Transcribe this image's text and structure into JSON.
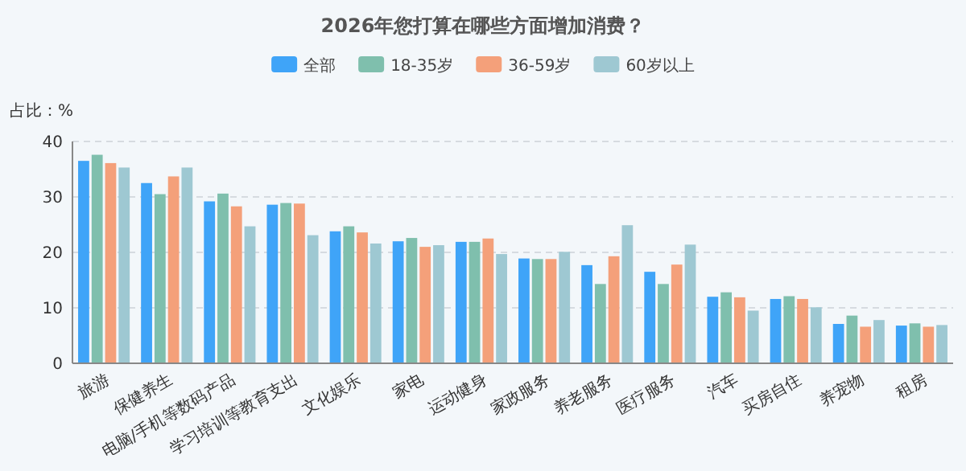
{
  "chart_data": {
    "type": "bar",
    "title": "2026年您打算在哪些方面增加消费？",
    "ylabel": "占比：%",
    "categories": [
      "旅游",
      "保健养生",
      "电脑/手机等数码产品",
      "学习培训等教育支出",
      "文化娱乐",
      "家电",
      "运动健身",
      "家政服务",
      "养老服务",
      "医疗服务",
      "汽车",
      "买房自住",
      "养宠物",
      "租房"
    ],
    "series": [
      {
        "name": "全部",
        "color": "#3fa4f8",
        "values": [
          36.5,
          32.5,
          29.2,
          28.6,
          23.8,
          22.0,
          21.9,
          18.9,
          17.7,
          16.5,
          12.0,
          11.6,
          7.1,
          6.8
        ]
      },
      {
        "name": "18-35岁",
        "color": "#7fbfad",
        "values": [
          37.6,
          30.5,
          30.6,
          28.9,
          24.7,
          22.6,
          21.9,
          18.8,
          14.3,
          14.3,
          12.8,
          12.1,
          8.6,
          7.2
        ]
      },
      {
        "name": "36-59岁",
        "color": "#f4a07a",
        "values": [
          36.1,
          33.7,
          28.3,
          28.8,
          23.6,
          21.0,
          22.5,
          18.8,
          19.3,
          17.8,
          11.9,
          11.6,
          6.6,
          6.6
        ]
      },
      {
        "name": "60岁以上",
        "color": "#9ec8d2",
        "values": [
          35.3,
          35.3,
          24.7,
          23.1,
          21.6,
          21.3,
          19.7,
          20.1,
          24.9,
          21.4,
          9.5,
          10.1,
          7.8,
          6.9
        ]
      }
    ],
    "ylim": [
      0,
      40
    ],
    "yticks": [
      0,
      10,
      20,
      30,
      40
    ],
    "grid": "y",
    "legend": "top"
  }
}
